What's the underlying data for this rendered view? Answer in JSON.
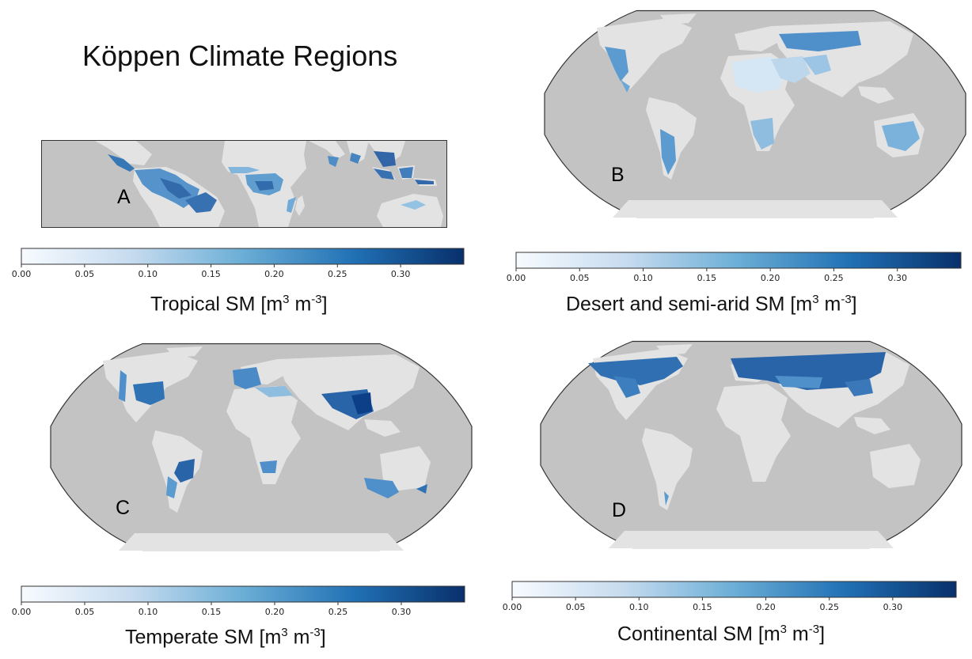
{
  "title": "Köppen Climate Regions",
  "colors": {
    "ocean": "#c3c3c3",
    "land": "#e3e3e3",
    "cmap_low": "#f7fbff",
    "cmap_mid": "#6baed6",
    "cmap_high": "#08306b"
  },
  "panels": [
    {
      "letter": "A",
      "projection": "PlateCarree (tropics)",
      "region": "Tropical",
      "cbar": {
        "label_main": "Tropical SM [m",
        "label_sup1": "3",
        "label_mid": " m",
        "label_sup2": "-3",
        "label_end": "]"
      }
    },
    {
      "letter": "B",
      "projection": "Robinson",
      "region": "Desert and semi-arid",
      "cbar": {
        "label_main": "Desert and semi-arid SM [m",
        "label_sup1": "3",
        "label_mid": " m",
        "label_sup2": "-3",
        "label_end": "]"
      }
    },
    {
      "letter": "C",
      "projection": "Robinson",
      "region": "Temperate",
      "cbar": {
        "label_main": "Temperate SM [m",
        "label_sup1": "3",
        "label_mid": " m",
        "label_sup2": "-3",
        "label_end": "]"
      }
    },
    {
      "letter": "D",
      "projection": "Robinson",
      "region": "Continental",
      "cbar": {
        "label_main": "Continental SM [m",
        "label_sup1": "3",
        "label_mid": " m",
        "label_sup2": "-3",
        "label_end": "]"
      }
    }
  ],
  "colorbar_ticks": [
    "0.00",
    "0.05",
    "0.10",
    "0.15",
    "0.20",
    "0.25",
    "0.30"
  ],
  "colorbar_range": [
    0,
    0.35
  ]
}
